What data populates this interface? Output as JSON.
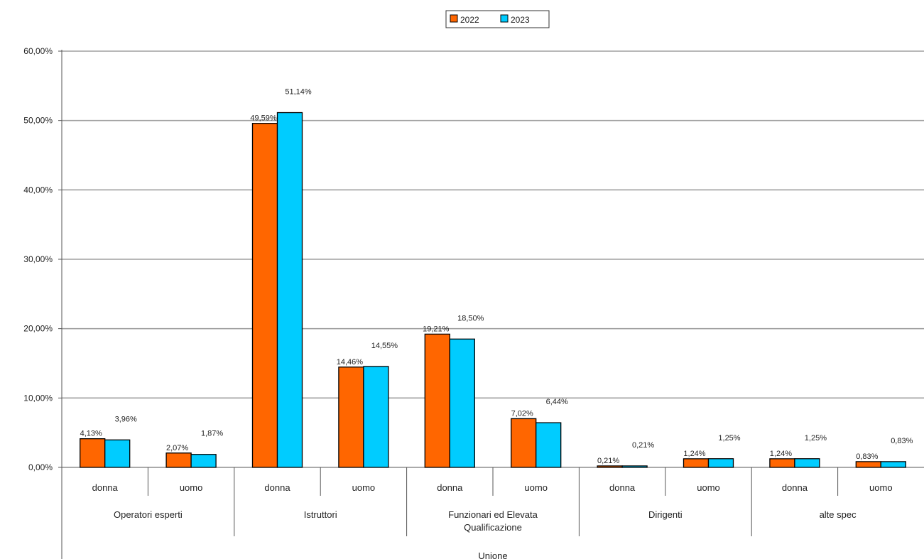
{
  "chart_data": {
    "type": "bar",
    "y_ticks": [
      "0,00%",
      "10,00%",
      "20,00%",
      "30,00%",
      "40,00%",
      "50,00%",
      "60,00%"
    ],
    "ylim": [
      0,
      60
    ],
    "grid": true,
    "legend_position": "top-center",
    "series": [
      {
        "name": "2022",
        "color": "#ff6600",
        "values": [
          4.13,
          2.07,
          49.59,
          14.46,
          19.21,
          7.02,
          0.21,
          1.24,
          1.24,
          0.83
        ],
        "labels": [
          "4,13%",
          "2,07%",
          "49,59%",
          "14,46%",
          "19,21%",
          "7,02%",
          "0,21%",
          "1,24%",
          "1,24%",
          "0,83%"
        ]
      },
      {
        "name": "2023",
        "color": "#00ccff",
        "values": [
          3.96,
          1.87,
          51.14,
          14.55,
          18.5,
          6.44,
          0.21,
          1.25,
          1.25,
          0.83
        ],
        "labels": [
          "3,96%",
          "1,87%",
          "51,14%",
          "14,55%",
          "18,50%",
          "6,44%",
          "0,21%",
          "1,25%",
          "1,25%",
          "0,83%"
        ]
      }
    ],
    "categories": [
      "donna",
      "uomo",
      "donna",
      "uomo",
      "donna",
      "uomo",
      "donna",
      "uomo",
      "donna",
      "uomo"
    ],
    "groups": [
      {
        "lines": [
          "Operatori esperti"
        ]
      },
      {
        "lines": [
          "Istruttori"
        ]
      },
      {
        "lines": [
          "Funzionari ed Elevata",
          "Qualificazione"
        ]
      },
      {
        "lines": [
          "Dirigenti"
        ]
      },
      {
        "lines": [
          "alte spec"
        ]
      }
    ],
    "top_group": "Unione"
  }
}
